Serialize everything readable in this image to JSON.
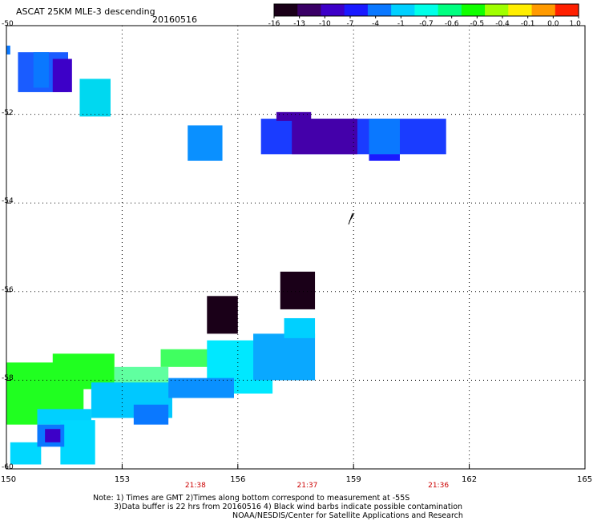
{
  "header": {
    "title": "ASCAT 25KM MLE-3 descending",
    "date": "20160516"
  },
  "colors": {
    "frame": "#000000",
    "grid": "#000000",
    "time_label": "#cc0000"
  },
  "chart_data": {
    "type": "heatmap",
    "title": "ASCAT 25KM MLE-3 descending",
    "subtitle": "20160516",
    "xlabel": "",
    "ylabel": "",
    "xlim": [
      150,
      165
    ],
    "ylim": [
      -60,
      -50
    ],
    "grid": true,
    "x_ticks": [
      150,
      153,
      156,
      159,
      162,
      165
    ],
    "y_ticks": [
      -50,
      -52,
      -54,
      -56,
      -58,
      -60
    ],
    "x_tick_labels": [
      "150",
      "153",
      "156",
      "159",
      "162",
      "165"
    ],
    "y_tick_labels": [
      "-50",
      "-52",
      "-54",
      "-56",
      "-58",
      "-60"
    ],
    "pass_times": [
      {
        "lon": 154.9,
        "label": "21:38"
      },
      {
        "lon": 157.8,
        "label": "21:37"
      },
      {
        "lon": 161.2,
        "label": "21:36"
      }
    ],
    "colorbar": {
      "placement": "top-right",
      "labels": [
        "-16",
        "-13",
        "-10",
        "-7",
        "-4",
        "-1",
        "-0.7",
        "-0.6",
        "-0.5",
        "-0.4",
        "-0.1",
        "0.0",
        "1.0"
      ],
      "colors": [
        "#1a0018",
        "#3a0066",
        "#3d00c8",
        "#1a1aff",
        "#0a78ff",
        "#00d0ff",
        "#00ffe8",
        "#00ff80",
        "#10ff00",
        "#a0ff00",
        "#ffee00",
        "#ff9a00",
        "#ff2000"
      ]
    },
    "cells": [
      {
        "lon0": 150.0,
        "lon1": 150.1,
        "lat0": -50.65,
        "lat1": -50.45,
        "color": "#0a78ff"
      },
      {
        "lon0": 150.3,
        "lon1": 151.6,
        "lat0": -51.5,
        "lat1": -50.6,
        "color": "#1a5cff"
      },
      {
        "lon0": 150.7,
        "lon1": 151.1,
        "lat0": -51.4,
        "lat1": -50.6,
        "color": "#0a78ff"
      },
      {
        "lon0": 151.2,
        "lon1": 151.7,
        "lat0": -51.5,
        "lat1": -50.75,
        "color": "#3d00c8"
      },
      {
        "lon0": 151.9,
        "lon1": 152.7,
        "lat0": -52.05,
        "lat1": -51.2,
        "color": "#00d8f0"
      },
      {
        "lon0": 154.7,
        "lon1": 155.6,
        "lat0": -53.05,
        "lat1": -52.25,
        "color": "#0a90ff"
      },
      {
        "lon0": 156.6,
        "lon1": 161.4,
        "lat0": -52.9,
        "lat1": -52.1,
        "color": "#1a3cff"
      },
      {
        "lon0": 157.4,
        "lon1": 159.1,
        "lat0": -52.9,
        "lat1": -52.1,
        "color": "#4400aa"
      },
      {
        "lon0": 157.0,
        "lon1": 157.9,
        "lat0": -52.15,
        "lat1": -51.95,
        "color": "#4400aa"
      },
      {
        "lon0": 159.4,
        "lon1": 160.2,
        "lat0": -52.9,
        "lat1": -52.1,
        "color": "#0a78ff"
      },
      {
        "lon0": 159.4,
        "lon1": 160.2,
        "lat0": -53.05,
        "lat1": -52.9,
        "color": "#1a1aff"
      },
      {
        "lon0": 157.1,
        "lon1": 158.0,
        "lat0": -56.4,
        "lat1": -55.55,
        "color": "#1a0018"
      },
      {
        "lon0": 155.2,
        "lon1": 156.0,
        "lat0": -56.95,
        "lat1": -56.1,
        "color": "#1a0018"
      },
      {
        "lon0": 150.0,
        "lon1": 152.0,
        "lat0": -59.0,
        "lat1": -57.6,
        "color": "#20ff20"
      },
      {
        "lon0": 151.2,
        "lon1": 152.8,
        "lat0": -58.2,
        "lat1": -57.4,
        "color": "#20ff20"
      },
      {
        "lon0": 152.8,
        "lon1": 154.2,
        "lat0": -58.3,
        "lat1": -57.7,
        "color": "#60ffa0"
      },
      {
        "lon0": 154.0,
        "lon1": 156.0,
        "lat0": -57.7,
        "lat1": -57.3,
        "color": "#40ff60"
      },
      {
        "lon0": 155.2,
        "lon1": 156.9,
        "lat0": -58.3,
        "lat1": -57.1,
        "color": "#00e8ff"
      },
      {
        "lon0": 156.4,
        "lon1": 158.0,
        "lat0": -58.0,
        "lat1": -56.95,
        "color": "#0aa8ff"
      },
      {
        "lon0": 157.2,
        "lon1": 158.0,
        "lat0": -57.05,
        "lat1": -56.6,
        "color": "#00d0ff"
      },
      {
        "lon0": 152.2,
        "lon1": 154.3,
        "lat0": -58.85,
        "lat1": -58.05,
        "color": "#00c8ff"
      },
      {
        "lon0": 154.2,
        "lon1": 155.9,
        "lat0": -58.4,
        "lat1": -57.95,
        "color": "#0a90ff"
      },
      {
        "lon0": 153.3,
        "lon1": 154.2,
        "lat0": -59.0,
        "lat1": -58.55,
        "color": "#0a78ff"
      },
      {
        "lon0": 150.8,
        "lon1": 152.2,
        "lat0": -59.0,
        "lat1": -58.65,
        "color": "#00d0ff"
      },
      {
        "lon0": 150.1,
        "lon1": 150.9,
        "lat0": -59.9,
        "lat1": -59.4,
        "color": "#00d8ff"
      },
      {
        "lon0": 151.4,
        "lon1": 152.3,
        "lat0": -59.9,
        "lat1": -58.9,
        "color": "#00d8ff"
      },
      {
        "lon0": 150.8,
        "lon1": 151.5,
        "lat0": -59.5,
        "lat1": -59.0,
        "color": "#0a78ff"
      },
      {
        "lon0": 151.0,
        "lon1": 151.4,
        "lat0": -59.4,
        "lat1": -59.1,
        "color": "#3d00c8"
      }
    ]
  },
  "footer": {
    "note_line1": "Note: 1) Times are GMT 2)Times along bottom correspond to measurement at -55S",
    "note_line2": "3)Data buffer is 22 hrs from 20160516 4) Black wind barbs indicate possible contamination",
    "credit": "NOAA/NESDIS/Center for Satellite Applications and Research"
  }
}
